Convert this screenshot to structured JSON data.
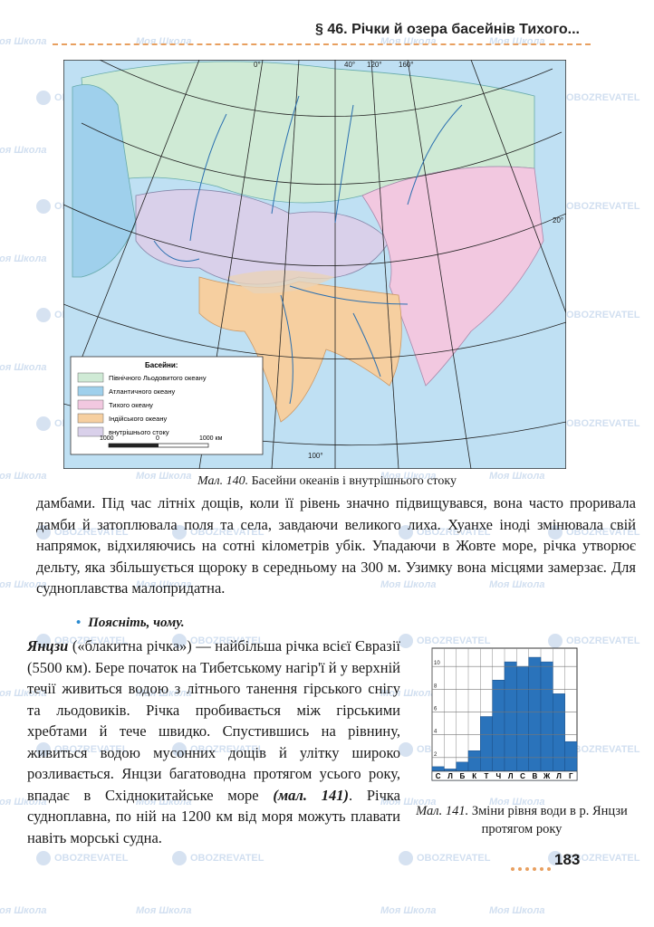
{
  "header": {
    "title": "§ 46. Річки й озера басейнів Тихого..."
  },
  "watermark": {
    "site": "Моя Школа",
    "brand": "OBOZREVATEL"
  },
  "map": {
    "graticule_labels": [
      "0°",
      "40°",
      "120°",
      "160°",
      "20°",
      "100°"
    ],
    "legend": {
      "title": "Басейни:",
      "items": [
        "Північного Льодовитого океану",
        "Атлантичного океану",
        "Тихого океану",
        "Індійського океану",
        "внутрішнього стоку"
      ]
    },
    "scale": [
      "1000",
      "0",
      "1000 км"
    ],
    "caption": {
      "label": "Мал. 140.",
      "text": "Басейни океанів і внутрішнього стоку"
    }
  },
  "text": {
    "paragraph_1": "дамбами. Під час літніх дощів, коли її рівень значно підвищувався, вона часто проривала дамби й затоплювала поля та села, завдаючи великого лиха. Хуанхе іноді змінювала свій напрямок, відхиляючись на сотні кілометрів убік. Упадаючи в Жовте море, річка утворює дельту, яка збільшується щороку в середньому на 300 м. Узимку вона місцями замерзає. Для судноплавства малопридатна.",
    "bullet": "Поясніть, чому.",
    "paragraph_2": {
      "term": "Янцзи",
      "body": " («блакитна річка») — найбільша річка всієї Євразії (5500 км). Бере початок на Тибетському нагір'ї й у верхній течії живиться водою з літнього танення гірського снігу та льодовиків. Річка пробивається між гірськими хребтами й тече швидко. Спустившись на рівнину, живиться водою мусонних дощів й улітку широко розливається. Янцзи багатоводна протягом усього року, впадає в Східнокитайське море ",
      "reference": "(мал. 141)",
      "end": ". Річка судноплавна, по ній на 1200 км від моря можуть плавати навіть морські судна."
    }
  },
  "chart_data": {
    "type": "bar",
    "categories": [
      "С",
      "Л",
      "Б",
      "К",
      "Т",
      "Ч",
      "Л",
      "С",
      "В",
      "Ж",
      "Л",
      "Г"
    ],
    "values": [
      1.2,
      1.0,
      1.6,
      2.6,
      5.6,
      8.8,
      10.4,
      10.0,
      10.8,
      10.4,
      7.6,
      3.4
    ],
    "color": "#2a73bb",
    "ylim": [
      0,
      11.6
    ],
    "yticks": [
      2,
      4,
      6,
      8,
      10
    ],
    "grid": true
  },
  "chart_caption": {
    "label": "Мал. 141.",
    "text": "Зміни рівня води в р. Янцзи протягом року"
  },
  "page_number": "183"
}
